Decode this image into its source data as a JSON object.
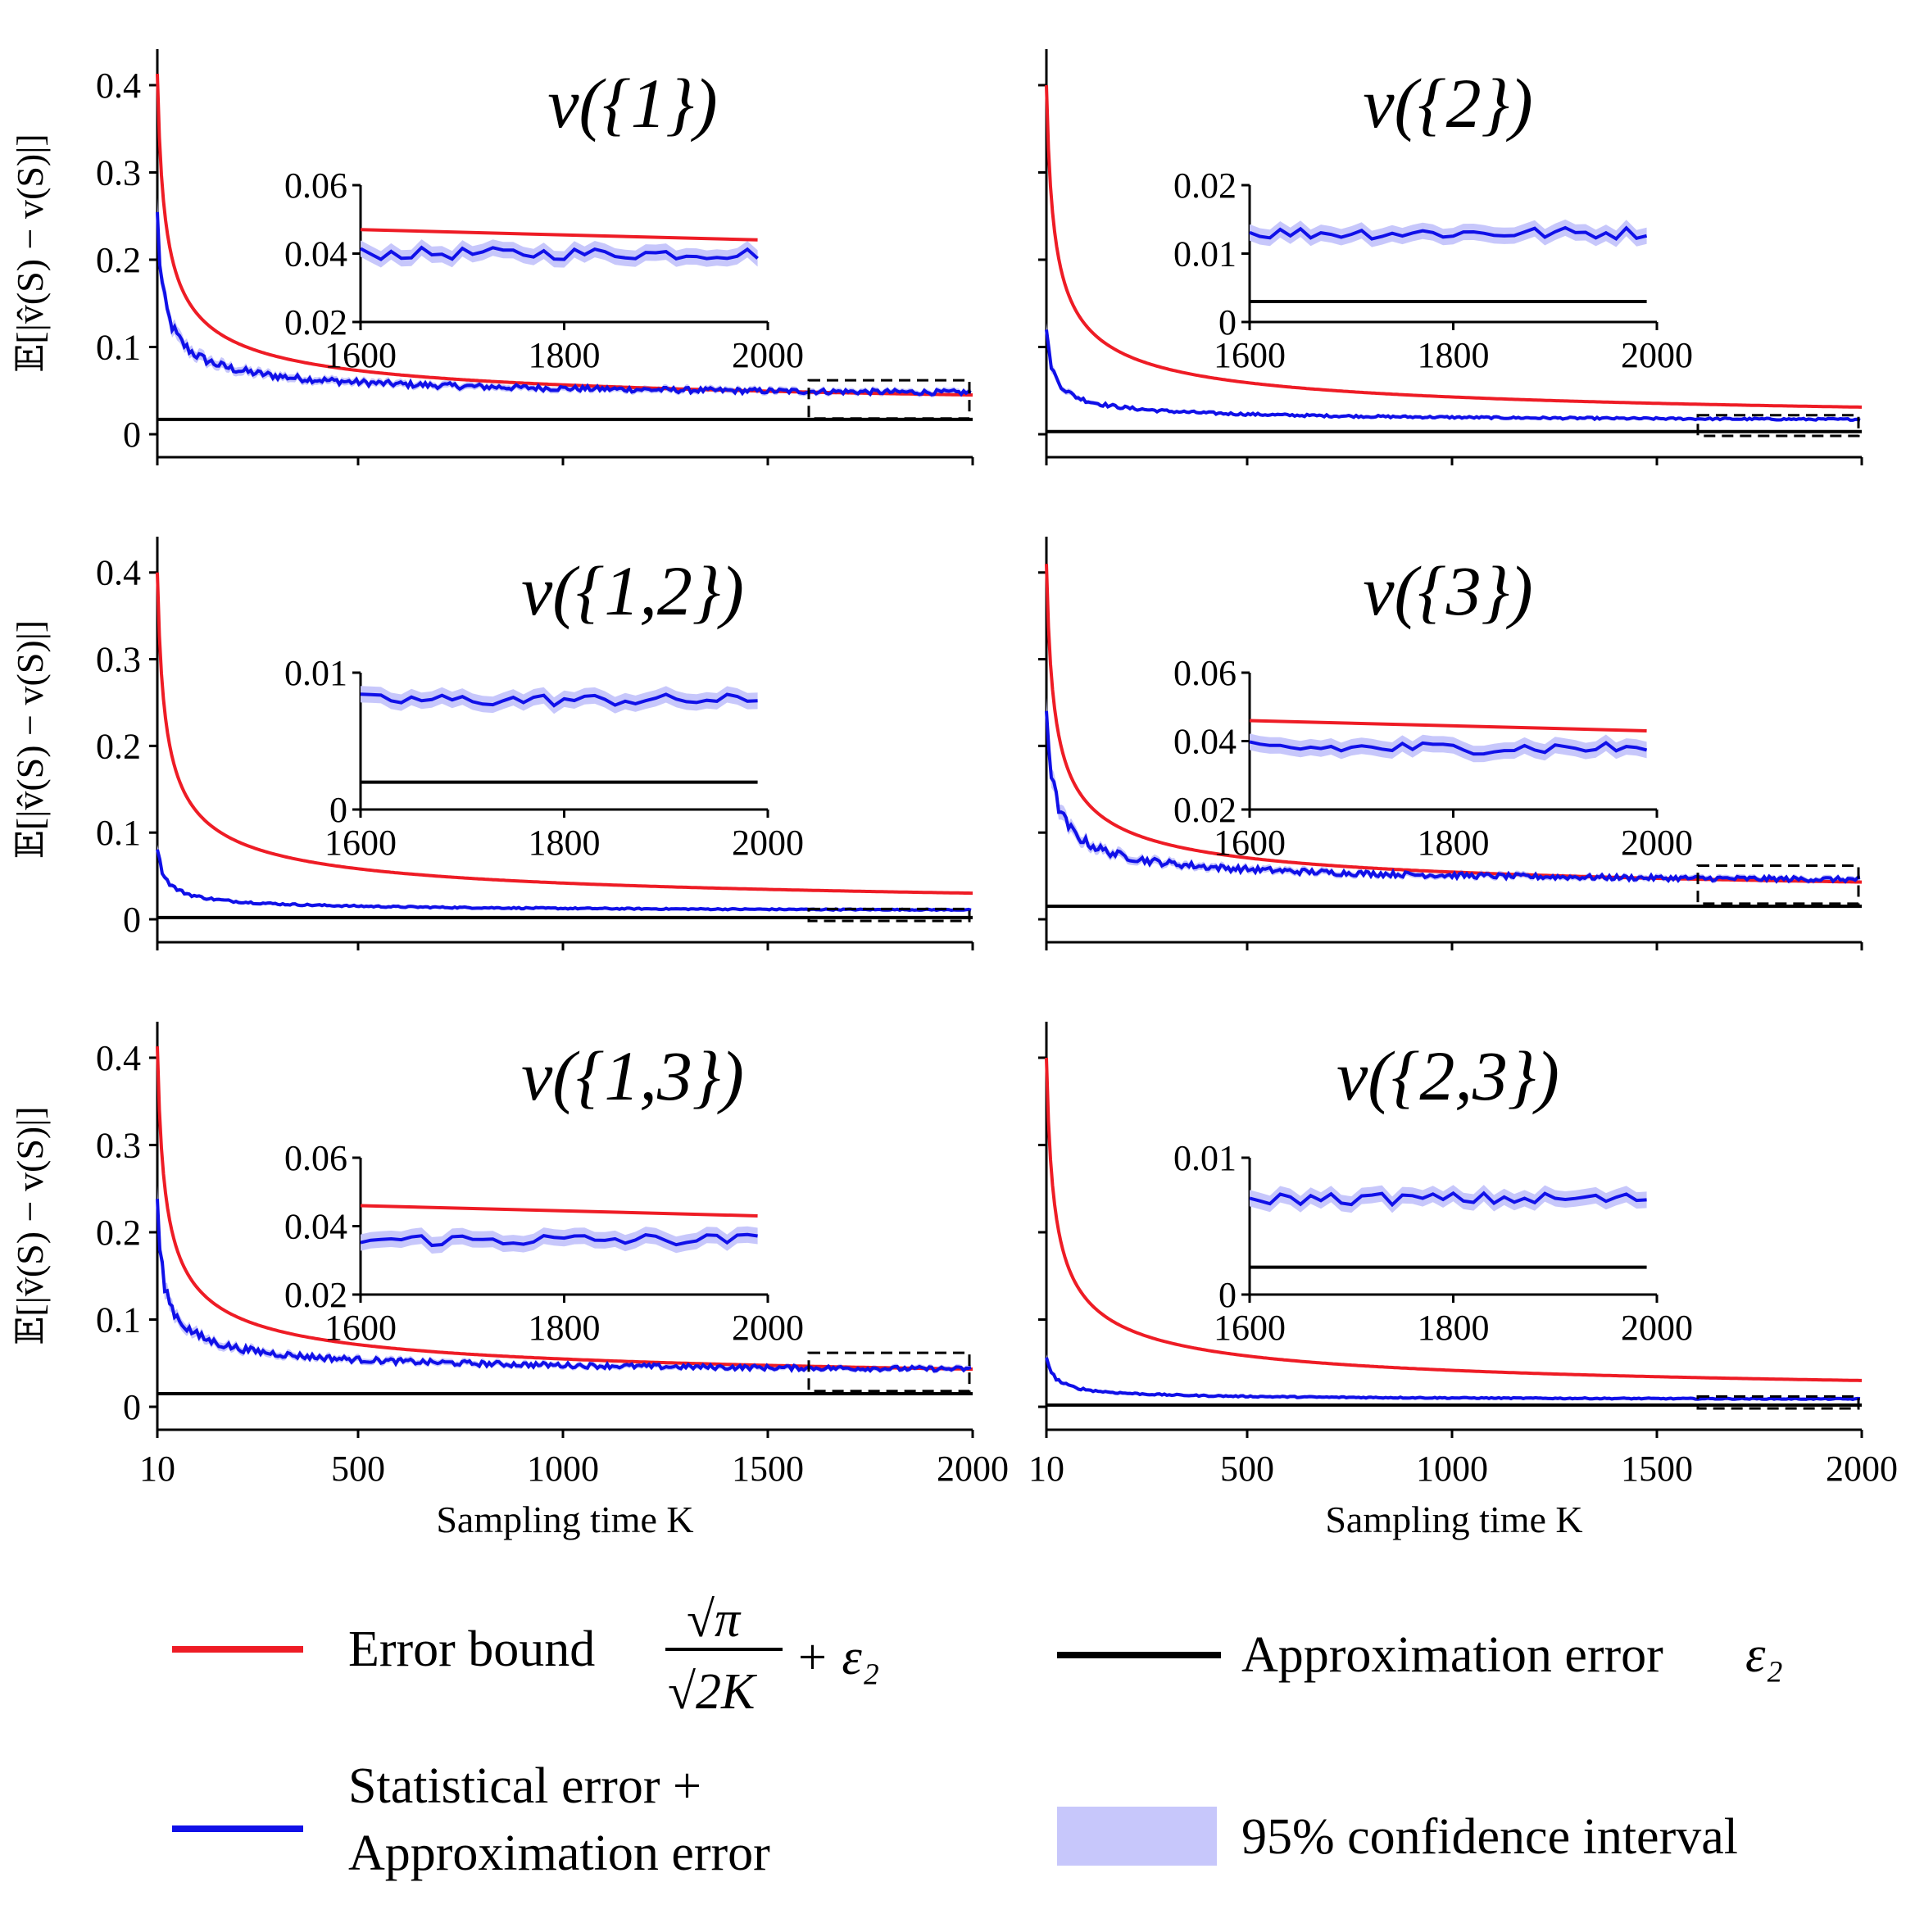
{
  "colors": {
    "bound": "#ee1c25",
    "stat": "#1010e8",
    "ci": "#c7c7fb",
    "approx": "#000000",
    "zoom_box": "#000000"
  },
  "chart_data": [
    {
      "type": "line",
      "title": "v({1})",
      "ylabel": "𝔼[|v̂(S) − v(S)|]",
      "xlabel": "",
      "xlim": [
        10,
        2000
      ],
      "ylim": [
        0,
        0.43
      ],
      "yticks": [
        "0",
        "0.1",
        "0.2",
        "0.3",
        "0.4"
      ],
      "xticks": [],
      "eps2": 0.017,
      "bound_at_10": 0.413,
      "stat_start": 0.25,
      "stat_end": 0.04,
      "inset": {
        "xlim": [
          1600,
          2000
        ],
        "ylim": [
          0.02,
          0.06
        ],
        "yticks": [
          "0.02",
          "0.04",
          "0.06"
        ],
        "xticks": [
          "1600",
          "1800",
          "2000"
        ],
        "bound_range": [
          0.047,
          0.044
        ],
        "stat_level": 0.04,
        "show_bound": true,
        "show_eps": false
      }
    },
    {
      "type": "line",
      "title": "v({2})",
      "ylabel": "",
      "xlabel": "",
      "xlim": [
        10,
        2000
      ],
      "ylim": [
        0,
        0.43
      ],
      "yticks": [],
      "xticks": [],
      "eps2": 0.003,
      "bound_at_10": 0.4,
      "stat_start": 0.12,
      "stat_end": 0.013,
      "inset": {
        "xlim": [
          1600,
          2000
        ],
        "ylim": [
          0,
          0.02
        ],
        "yticks": [
          "0",
          "0.01",
          "0.02"
        ],
        "xticks": [
          "1600",
          "1800",
          "2000"
        ],
        "bound_range": null,
        "stat_level": 0.013,
        "show_bound": false,
        "show_eps": true
      }
    },
    {
      "type": "line",
      "title": "v({1,2})",
      "ylabel": "𝔼[|v̂(S) − v(S)|]",
      "xlabel": "",
      "xlim": [
        10,
        2000
      ],
      "ylim": [
        0,
        0.43
      ],
      "yticks": [
        "0",
        "0.1",
        "0.2",
        "0.3",
        "0.4"
      ],
      "xticks": [],
      "eps2": 0.002,
      "bound_at_10": 0.4,
      "stat_start": 0.085,
      "stat_end": 0.008,
      "inset": {
        "xlim": [
          1600,
          2000
        ],
        "ylim": [
          0,
          0.01
        ],
        "yticks": [
          "0",
          "0.01"
        ],
        "xticks": [
          "1600",
          "1800",
          "2000"
        ],
        "bound_range": null,
        "stat_level": 0.008,
        "show_bound": false,
        "show_eps": true
      }
    },
    {
      "type": "line",
      "title": "v({3})",
      "ylabel": "",
      "xlabel": "",
      "xlim": [
        10,
        2000
      ],
      "ylim": [
        0,
        0.43
      ],
      "yticks": [],
      "xticks": [],
      "eps2": 0.015,
      "bound_at_10": 0.41,
      "stat_start": 0.25,
      "stat_end": 0.038,
      "inset": {
        "xlim": [
          1600,
          2000
        ],
        "ylim": [
          0.02,
          0.06
        ],
        "yticks": [
          "0.02",
          "0.04",
          "0.06"
        ],
        "xticks": [
          "1600",
          "1800",
          "2000"
        ],
        "bound_range": [
          0.046,
          0.043
        ],
        "stat_level": 0.038,
        "show_bound": true,
        "show_eps": false
      }
    },
    {
      "type": "line",
      "title": "v({1,3})",
      "ylabel": "𝔼[|v̂(S) − v(S)|]",
      "xlabel": "Sampling time K",
      "xlim": [
        10,
        2000
      ],
      "ylim": [
        0,
        0.43
      ],
      "yticks": [
        "0",
        "0.1",
        "0.2",
        "0.3",
        "0.4"
      ],
      "xticks": [
        "10",
        "500",
        "1000",
        "1500",
        "2000"
      ],
      "eps2": 0.015,
      "bound_at_10": 0.413,
      "stat_start": 0.23,
      "stat_end": 0.036,
      "inset": {
        "xlim": [
          1600,
          2000
        ],
        "ylim": [
          0.02,
          0.06
        ],
        "yticks": [
          "0.02",
          "0.04",
          "0.06"
        ],
        "xticks": [
          "1600",
          "1800",
          "2000"
        ],
        "bound_range": [
          0.046,
          0.043
        ],
        "stat_level": 0.036,
        "show_bound": true,
        "show_eps": false
      }
    },
    {
      "type": "line",
      "title": "v({2,3})",
      "ylabel": "",
      "xlabel": "Sampling time K",
      "xlim": [
        10,
        2000
      ],
      "ylim": [
        0,
        0.43
      ],
      "yticks": [],
      "xticks": [
        "10",
        "500",
        "1000",
        "1500",
        "2000"
      ],
      "eps2": 0.002,
      "bound_at_10": 0.4,
      "stat_start": 0.06,
      "stat_end": 0.007,
      "inset": {
        "xlim": [
          1600,
          2000
        ],
        "ylim": [
          0,
          0.01
        ],
        "yticks": [
          "0",
          "0.01"
        ],
        "xticks": [
          "1600",
          "1800",
          "2000"
        ],
        "bound_range": null,
        "stat_level": 0.007,
        "show_bound": false,
        "show_eps": true
      }
    }
  ],
  "legend": {
    "bound_label": "Error bound",
    "bound_formula": {
      "num": "√π",
      "den": "√2K",
      "tail": "+ ε₂"
    },
    "stat_label_line1": "Statistical error +",
    "stat_label_line2": "Approximation error",
    "approx_label": "Approximation error",
    "approx_symbol": "ε₂",
    "ci_label": "95% confidence interval"
  }
}
